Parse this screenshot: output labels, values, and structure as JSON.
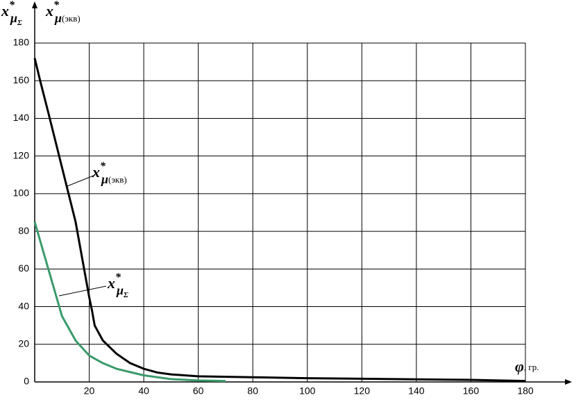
{
  "chart_data": {
    "type": "line",
    "y_labels": [
      {
        "main": "x",
        "sup": "*",
        "sub": "μ",
        "subsub": "Σ"
      },
      {
        "main": "x",
        "sup": "*",
        "sub": "μ",
        "note": "(экв)"
      }
    ],
    "x_label": {
      "main": "φ",
      "note": ", гр."
    },
    "series": [
      {
        "name": {
          "main": "x",
          "sup": "*",
          "sub": "μ",
          "note": "(экв)"
        },
        "color": "#000000",
        "x": [
          0,
          2,
          5,
          10,
          15,
          20,
          21,
          22,
          25,
          30,
          35,
          40,
          45,
          50,
          60,
          80,
          100,
          120,
          140,
          160,
          180
        ],
        "values": [
          172,
          160,
          143,
          114,
          85,
          45,
          38,
          30,
          22,
          15,
          10,
          7,
          5,
          4,
          3,
          2.5,
          2,
          1.7,
          1.4,
          1.1,
          0.5
        ]
      },
      {
        "name": {
          "main": "x",
          "sup": "*",
          "sub": "μ",
          "subsub": "Σ"
        },
        "color": "#3a9a6a",
        "x": [
          0,
          5,
          10,
          15,
          20,
          25,
          30,
          40,
          50,
          60,
          70
        ],
        "values": [
          85,
          60,
          35,
          22,
          14,
          10,
          7,
          3.5,
          1.5,
          0.8,
          0.5
        ]
      }
    ],
    "xlim": [
      0,
      180
    ],
    "ylim": [
      0,
      180
    ],
    "xticks": [
      20,
      40,
      60,
      80,
      100,
      120,
      140,
      160,
      180
    ],
    "yticks": [
      0,
      20,
      40,
      60,
      80,
      100,
      120,
      140,
      160,
      180
    ],
    "grid": true
  }
}
